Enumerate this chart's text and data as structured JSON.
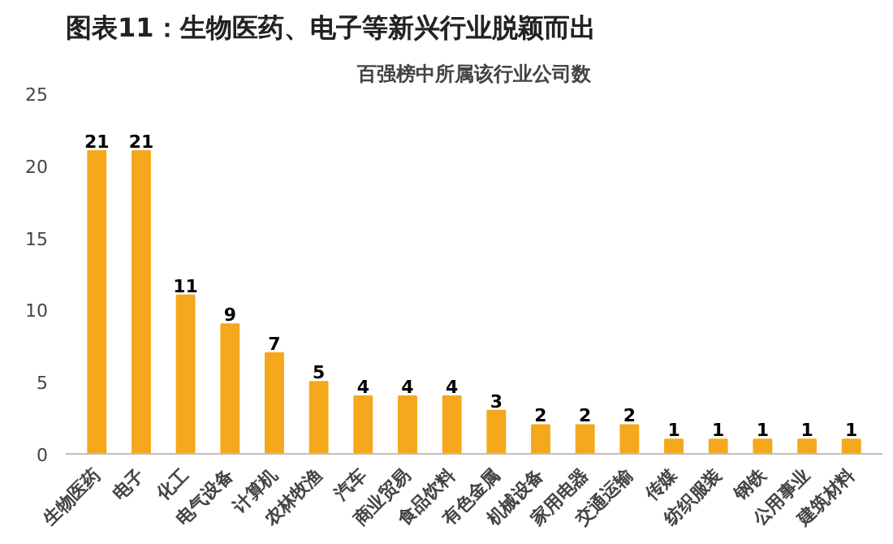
{
  "chart_data": {
    "type": "bar",
    "title": "图表11：生物医药、电子等新兴行业脱颖而出",
    "subtitle": "百强榜中所属该行业公司数",
    "categories": [
      "生物医药",
      "电子",
      "化工",
      "电气设备",
      "计算机",
      "农林牧渔",
      "汽车",
      "商业贸易",
      "食品饮料",
      "有色金属",
      "机械设备",
      "家用电器",
      "交通运输",
      "传媒",
      "纺织服装",
      "钢铁",
      "公用事业",
      "建筑材料"
    ],
    "values": [
      21,
      21,
      11,
      9,
      7,
      5,
      4,
      4,
      4,
      3,
      2,
      2,
      2,
      1,
      1,
      1,
      1,
      1
    ],
    "color": "#f5a81c",
    "ylim": [
      0,
      25
    ],
    "yticks": [
      0,
      5,
      10,
      15,
      20,
      25
    ],
    "grid": false,
    "data_labels": true
  }
}
